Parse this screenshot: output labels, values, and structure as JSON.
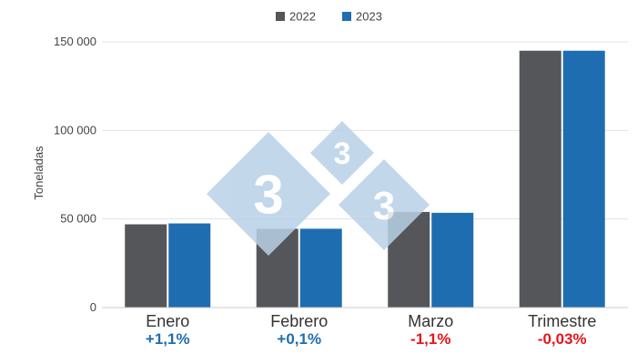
{
  "chart_data": {
    "type": "bar",
    "title": "",
    "xlabel": "",
    "ylabel": "Toneladas",
    "ylim": [
      0,
      150000
    ],
    "yticks": [
      {
        "value": 0,
        "label": "0"
      },
      {
        "value": 50000,
        "label": "50 000"
      },
      {
        "value": 100000,
        "label": "100 000"
      },
      {
        "value": 150000,
        "label": "150 000"
      }
    ],
    "grid": true,
    "legend_position": "top",
    "categories": [
      "Enero",
      "Febrero",
      "Marzo",
      "Trimestre"
    ],
    "series": [
      {
        "name": "2022",
        "color": "#54565a",
        "values": [
          47000,
          44500,
          54000,
          145000
        ]
      },
      {
        "name": "2023",
        "color": "#1f6db1",
        "values": [
          47500,
          44500,
          53500,
          145000
        ]
      }
    ],
    "annotations": [
      {
        "category": "Enero",
        "text": "+1,1%",
        "color": "#1f6db1"
      },
      {
        "category": "Febrero",
        "text": "+0,1%",
        "color": "#1f6db1"
      },
      {
        "category": "Marzo",
        "text": "-1,1%",
        "color": "#e8141b"
      },
      {
        "category": "Trimestre",
        "text": "-0,03%",
        "color": "#e8141b"
      }
    ]
  },
  "watermark": {
    "glyph": "3",
    "color": "#b9d1e8"
  }
}
